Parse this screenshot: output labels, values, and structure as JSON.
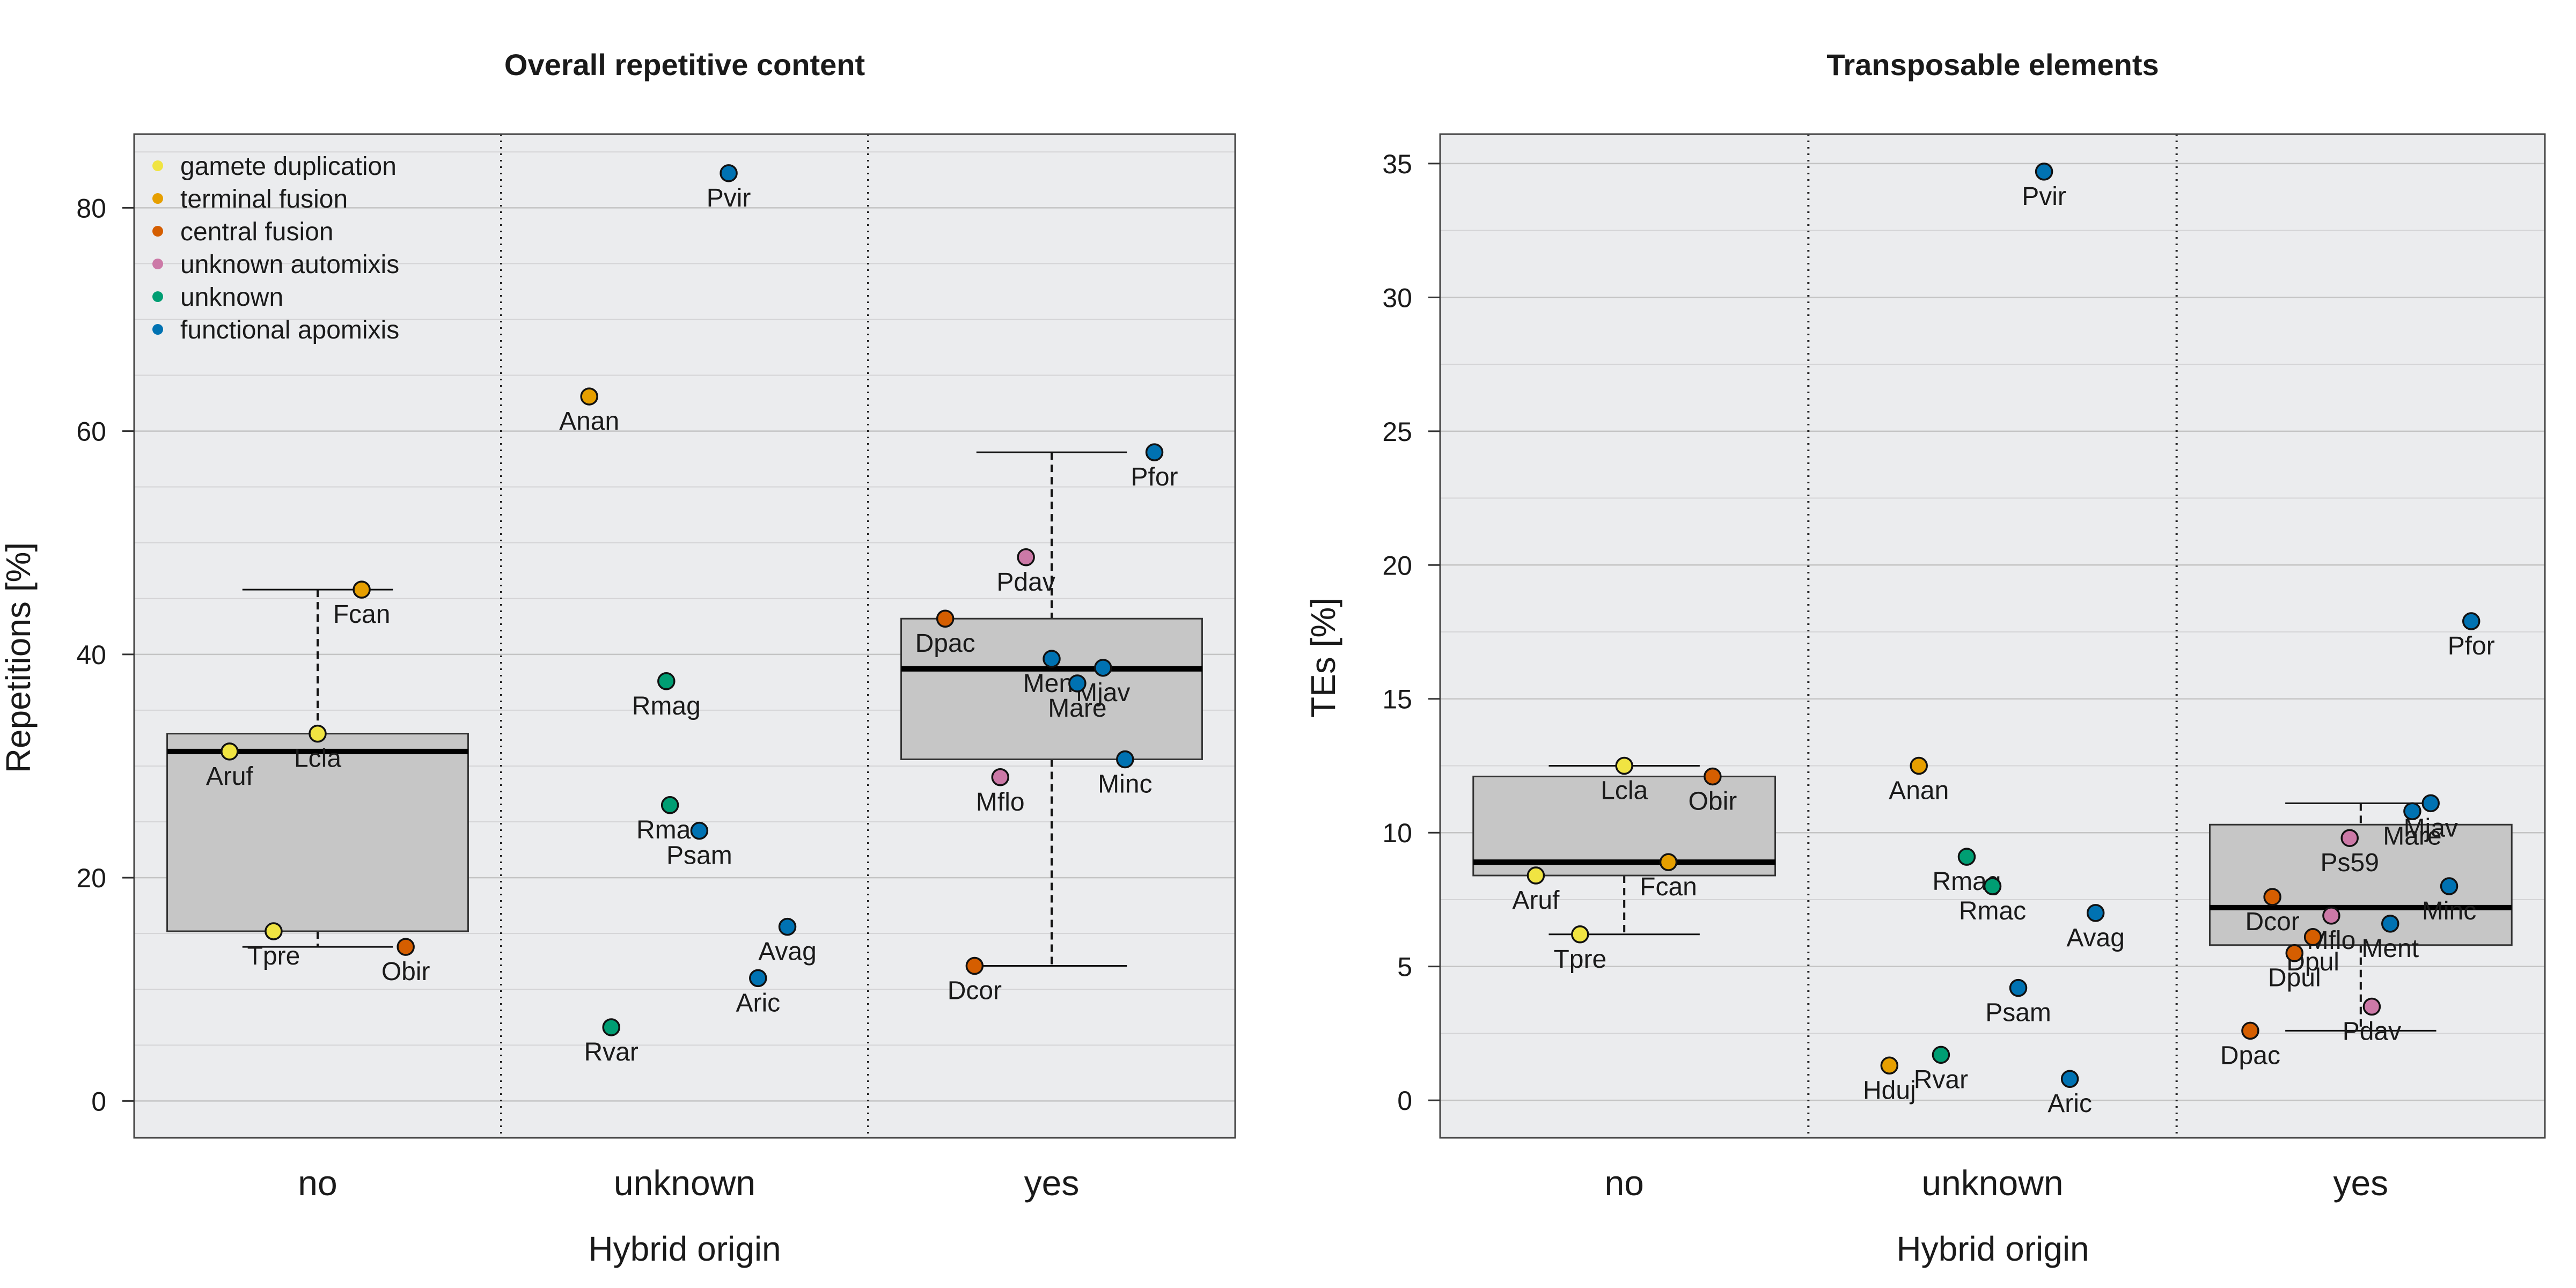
{
  "panels": [
    {
      "title": "Overall repetitive content",
      "xlabel": "Hybrid origin",
      "ylabel": "Repetitions [%]",
      "categories": [
        "no",
        "unknown",
        "yes"
      ],
      "yticks": [
        0,
        20,
        40,
        60,
        80
      ],
      "ylim": [
        -3.3,
        86.6
      ],
      "grid_step": 5,
      "legend": "top-left",
      "boxes": [
        {
          "category": "no",
          "whisker_low": 13.8,
          "q1": 15.2,
          "median": 31.3,
          "q3": 32.9,
          "whisker_high": 45.8
        },
        {
          "category": "yes",
          "whisker_low": 12.1,
          "q1": 30.6,
          "median": 38.7,
          "q3": 43.2,
          "whisker_high": 58.1
        }
      ],
      "points": [
        {
          "label": "Aruf",
          "category": "no",
          "offset": -0.24,
          "y": 31.3,
          "cls": "gamete duplication"
        },
        {
          "label": "Lcla",
          "category": "no",
          "offset": 0.0,
          "y": 32.9,
          "cls": "gamete duplication"
        },
        {
          "label": "Fcan",
          "category": "no",
          "offset": 0.12,
          "y": 45.8,
          "cls": "terminal fusion"
        },
        {
          "label": "Tpre",
          "category": "no",
          "offset": -0.12,
          "y": 15.2,
          "cls": "gamete duplication"
        },
        {
          "label": "Obir",
          "category": "no",
          "offset": 0.24,
          "y": 13.8,
          "cls": "central fusion"
        },
        {
          "label": "Pvir",
          "category": "unknown",
          "offset": 0.12,
          "y": 83.1,
          "cls": "functional apomixis"
        },
        {
          "label": "Anan",
          "category": "unknown",
          "offset": -0.26,
          "y": 63.1,
          "cls": "terminal fusion"
        },
        {
          "label": "Rmag",
          "category": "unknown",
          "offset": -0.05,
          "y": 37.6,
          "cls": "unknown"
        },
        {
          "label": "Rmac",
          "category": "unknown",
          "offset": -0.04,
          "y": 26.5,
          "cls": "unknown"
        },
        {
          "label": "Psam",
          "category": "unknown",
          "offset": 0.04,
          "y": 24.2,
          "cls": "functional apomixis"
        },
        {
          "label": "Avag",
          "category": "unknown",
          "offset": 0.28,
          "y": 15.6,
          "cls": "functional apomixis"
        },
        {
          "label": "Aric",
          "category": "unknown",
          "offset": 0.2,
          "y": 11.0,
          "cls": "functional apomixis"
        },
        {
          "label": "Rvar",
          "category": "unknown",
          "offset": -0.2,
          "y": 6.6,
          "cls": "unknown"
        },
        {
          "label": "Pfor",
          "category": "yes",
          "offset": 0.28,
          "y": 58.1,
          "cls": "functional apomixis"
        },
        {
          "label": "Pdav",
          "category": "yes",
          "offset": -0.07,
          "y": 48.7,
          "cls": "unknown automixis"
        },
        {
          "label": "Dpac",
          "category": "yes",
          "offset": -0.29,
          "y": 43.2,
          "cls": "central fusion"
        },
        {
          "label": "Ment",
          "category": "yes",
          "offset": 0.0,
          "y": 39.6,
          "cls": "functional apomixis"
        },
        {
          "label": "Mjav",
          "category": "yes",
          "offset": 0.14,
          "y": 38.8,
          "cls": "functional apomixis"
        },
        {
          "label": "Mare",
          "category": "yes",
          "offset": 0.07,
          "y": 37.4,
          "cls": "functional apomixis"
        },
        {
          "label": "Minc",
          "category": "yes",
          "offset": 0.2,
          "y": 30.6,
          "cls": "functional apomixis"
        },
        {
          "label": "Mflo",
          "category": "yes",
          "offset": -0.14,
          "y": 29.0,
          "cls": "unknown automixis"
        },
        {
          "label": "Dcor",
          "category": "yes",
          "offset": -0.21,
          "y": 12.1,
          "cls": "central fusion"
        }
      ]
    },
    {
      "title": "Transposable elements",
      "xlabel": "Hybrid origin",
      "ylabel": "TEs [%]",
      "categories": [
        "no",
        "unknown",
        "yes"
      ],
      "yticks": [
        0,
        5,
        10,
        15,
        20,
        25,
        30,
        35
      ],
      "ylim": [
        -1.4,
        36.1
      ],
      "grid_step": 2.5,
      "boxes": [
        {
          "category": "no",
          "whisker_low": 6.2,
          "q1": 8.4,
          "median": 8.9,
          "q3": 12.1,
          "whisker_high": 12.5
        },
        {
          "category": "yes",
          "whisker_low": 2.6,
          "q1": 5.8,
          "median": 7.2,
          "q3": 10.3,
          "whisker_high": 11.1
        }
      ],
      "points": [
        {
          "label": "Lcla",
          "category": "no",
          "offset": 0.0,
          "y": 12.5,
          "cls": "gamete duplication"
        },
        {
          "label": "Obir",
          "category": "no",
          "offset": 0.24,
          "y": 12.1,
          "cls": "central fusion"
        },
        {
          "label": "Fcan",
          "category": "no",
          "offset": 0.12,
          "y": 8.9,
          "cls": "terminal fusion"
        },
        {
          "label": "Aruf",
          "category": "no",
          "offset": -0.24,
          "y": 8.4,
          "cls": "gamete duplication"
        },
        {
          "label": "Tpre",
          "category": "no",
          "offset": -0.12,
          "y": 6.2,
          "cls": "gamete duplication"
        },
        {
          "label": "Pvir",
          "category": "unknown",
          "offset": 0.14,
          "y": 34.7,
          "cls": "functional apomixis"
        },
        {
          "label": "Anan",
          "category": "unknown",
          "offset": -0.2,
          "y": 12.5,
          "cls": "terminal fusion"
        },
        {
          "label": "Rmag",
          "category": "unknown",
          "offset": -0.07,
          "y": 9.1,
          "cls": "unknown"
        },
        {
          "label": "Rmac",
          "category": "unknown",
          "offset": 0.0,
          "y": 8.0,
          "cls": "unknown"
        },
        {
          "label": "Avag",
          "category": "unknown",
          "offset": 0.28,
          "y": 7.0,
          "cls": "functional apomixis"
        },
        {
          "label": "Psam",
          "category": "unknown",
          "offset": 0.07,
          "y": 4.2,
          "cls": "functional apomixis"
        },
        {
          "label": "Hduj",
          "category": "unknown",
          "offset": -0.28,
          "y": 1.3,
          "cls": "terminal fusion"
        },
        {
          "label": "Rvar",
          "category": "unknown",
          "offset": -0.14,
          "y": 1.7,
          "cls": "unknown"
        },
        {
          "label": "Aric",
          "category": "unknown",
          "offset": 0.21,
          "y": 0.8,
          "cls": "functional apomixis"
        },
        {
          "label": "Pfor",
          "category": "yes",
          "offset": 0.3,
          "y": 17.9,
          "cls": "functional apomixis"
        },
        {
          "label": "Mjav",
          "category": "yes",
          "offset": 0.19,
          "y": 11.1,
          "cls": "functional apomixis"
        },
        {
          "label": "Mare",
          "category": "yes",
          "offset": 0.14,
          "y": 10.8,
          "cls": "functional apomixis"
        },
        {
          "label": "Ps59",
          "category": "yes",
          "offset": -0.03,
          "y": 9.8,
          "cls": "unknown automixis"
        },
        {
          "label": "Minc",
          "category": "yes",
          "offset": 0.24,
          "y": 8.0,
          "cls": "functional apomixis"
        },
        {
          "label": "Dcor",
          "category": "yes",
          "offset": -0.24,
          "y": 7.6,
          "cls": "central fusion"
        },
        {
          "label": "Mflo",
          "category": "yes",
          "offset": -0.08,
          "y": 6.9,
          "cls": "unknown automixis"
        },
        {
          "label": "Ment",
          "category": "yes",
          "offset": 0.08,
          "y": 6.6,
          "cls": "functional apomixis"
        },
        {
          "label": "Dpul",
          "category": "yes",
          "offset": -0.13,
          "y": 6.1,
          "cls": "central fusion"
        },
        {
          "label": "Dpul",
          "category": "yes",
          "offset": -0.18,
          "y": 5.5,
          "cls": "central fusion"
        },
        {
          "label": "Pdav",
          "category": "yes",
          "offset": 0.03,
          "y": 3.5,
          "cls": "unknown automixis"
        },
        {
          "label": "Dpac",
          "category": "yes",
          "offset": -0.3,
          "y": 2.6,
          "cls": "central fusion"
        }
      ]
    }
  ],
  "legend": [
    {
      "name": "gamete duplication",
      "color": "#f0e442"
    },
    {
      "name": "terminal fusion",
      "color": "#e69f00"
    },
    {
      "name": "central fusion",
      "color": "#d55e00"
    },
    {
      "name": "unknown automixis",
      "color": "#cc79a7"
    },
    {
      "name": "unknown",
      "color": "#009e73"
    },
    {
      "name": "functional apomixis",
      "color": "#0072b2"
    }
  ]
}
